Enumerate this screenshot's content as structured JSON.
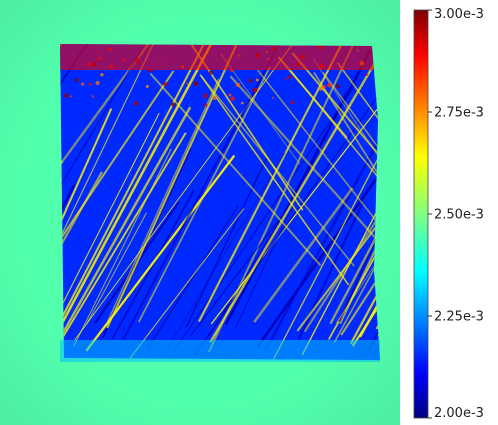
{
  "chart_data": {
    "type": "heatmap",
    "title": "",
    "xlabel": "",
    "ylabel": "",
    "colorbar": {
      "range": [
        0.002,
        0.003
      ],
      "colormap": "jet",
      "position": "right",
      "ticks": [
        {
          "value": 0.003,
          "label": "3.00e-3"
        },
        {
          "value": 0.00275,
          "label": "2.75e-3"
        },
        {
          "value": 0.0025,
          "label": "2.50e-3"
        },
        {
          "value": 0.00225,
          "label": "2.25e-3"
        },
        {
          "value": 0.002,
          "label": "2.00e-3"
        }
      ]
    },
    "field": {
      "background_value": 0.00245,
      "region_value": 0.00215,
      "top_band_value": 0.0029,
      "bottom_band_value": 0.0023,
      "streak_direction": "diagonal, lower-left to upper-right",
      "streak_high_value": 0.00265,
      "streak_low_value": 0.00205
    }
  }
}
